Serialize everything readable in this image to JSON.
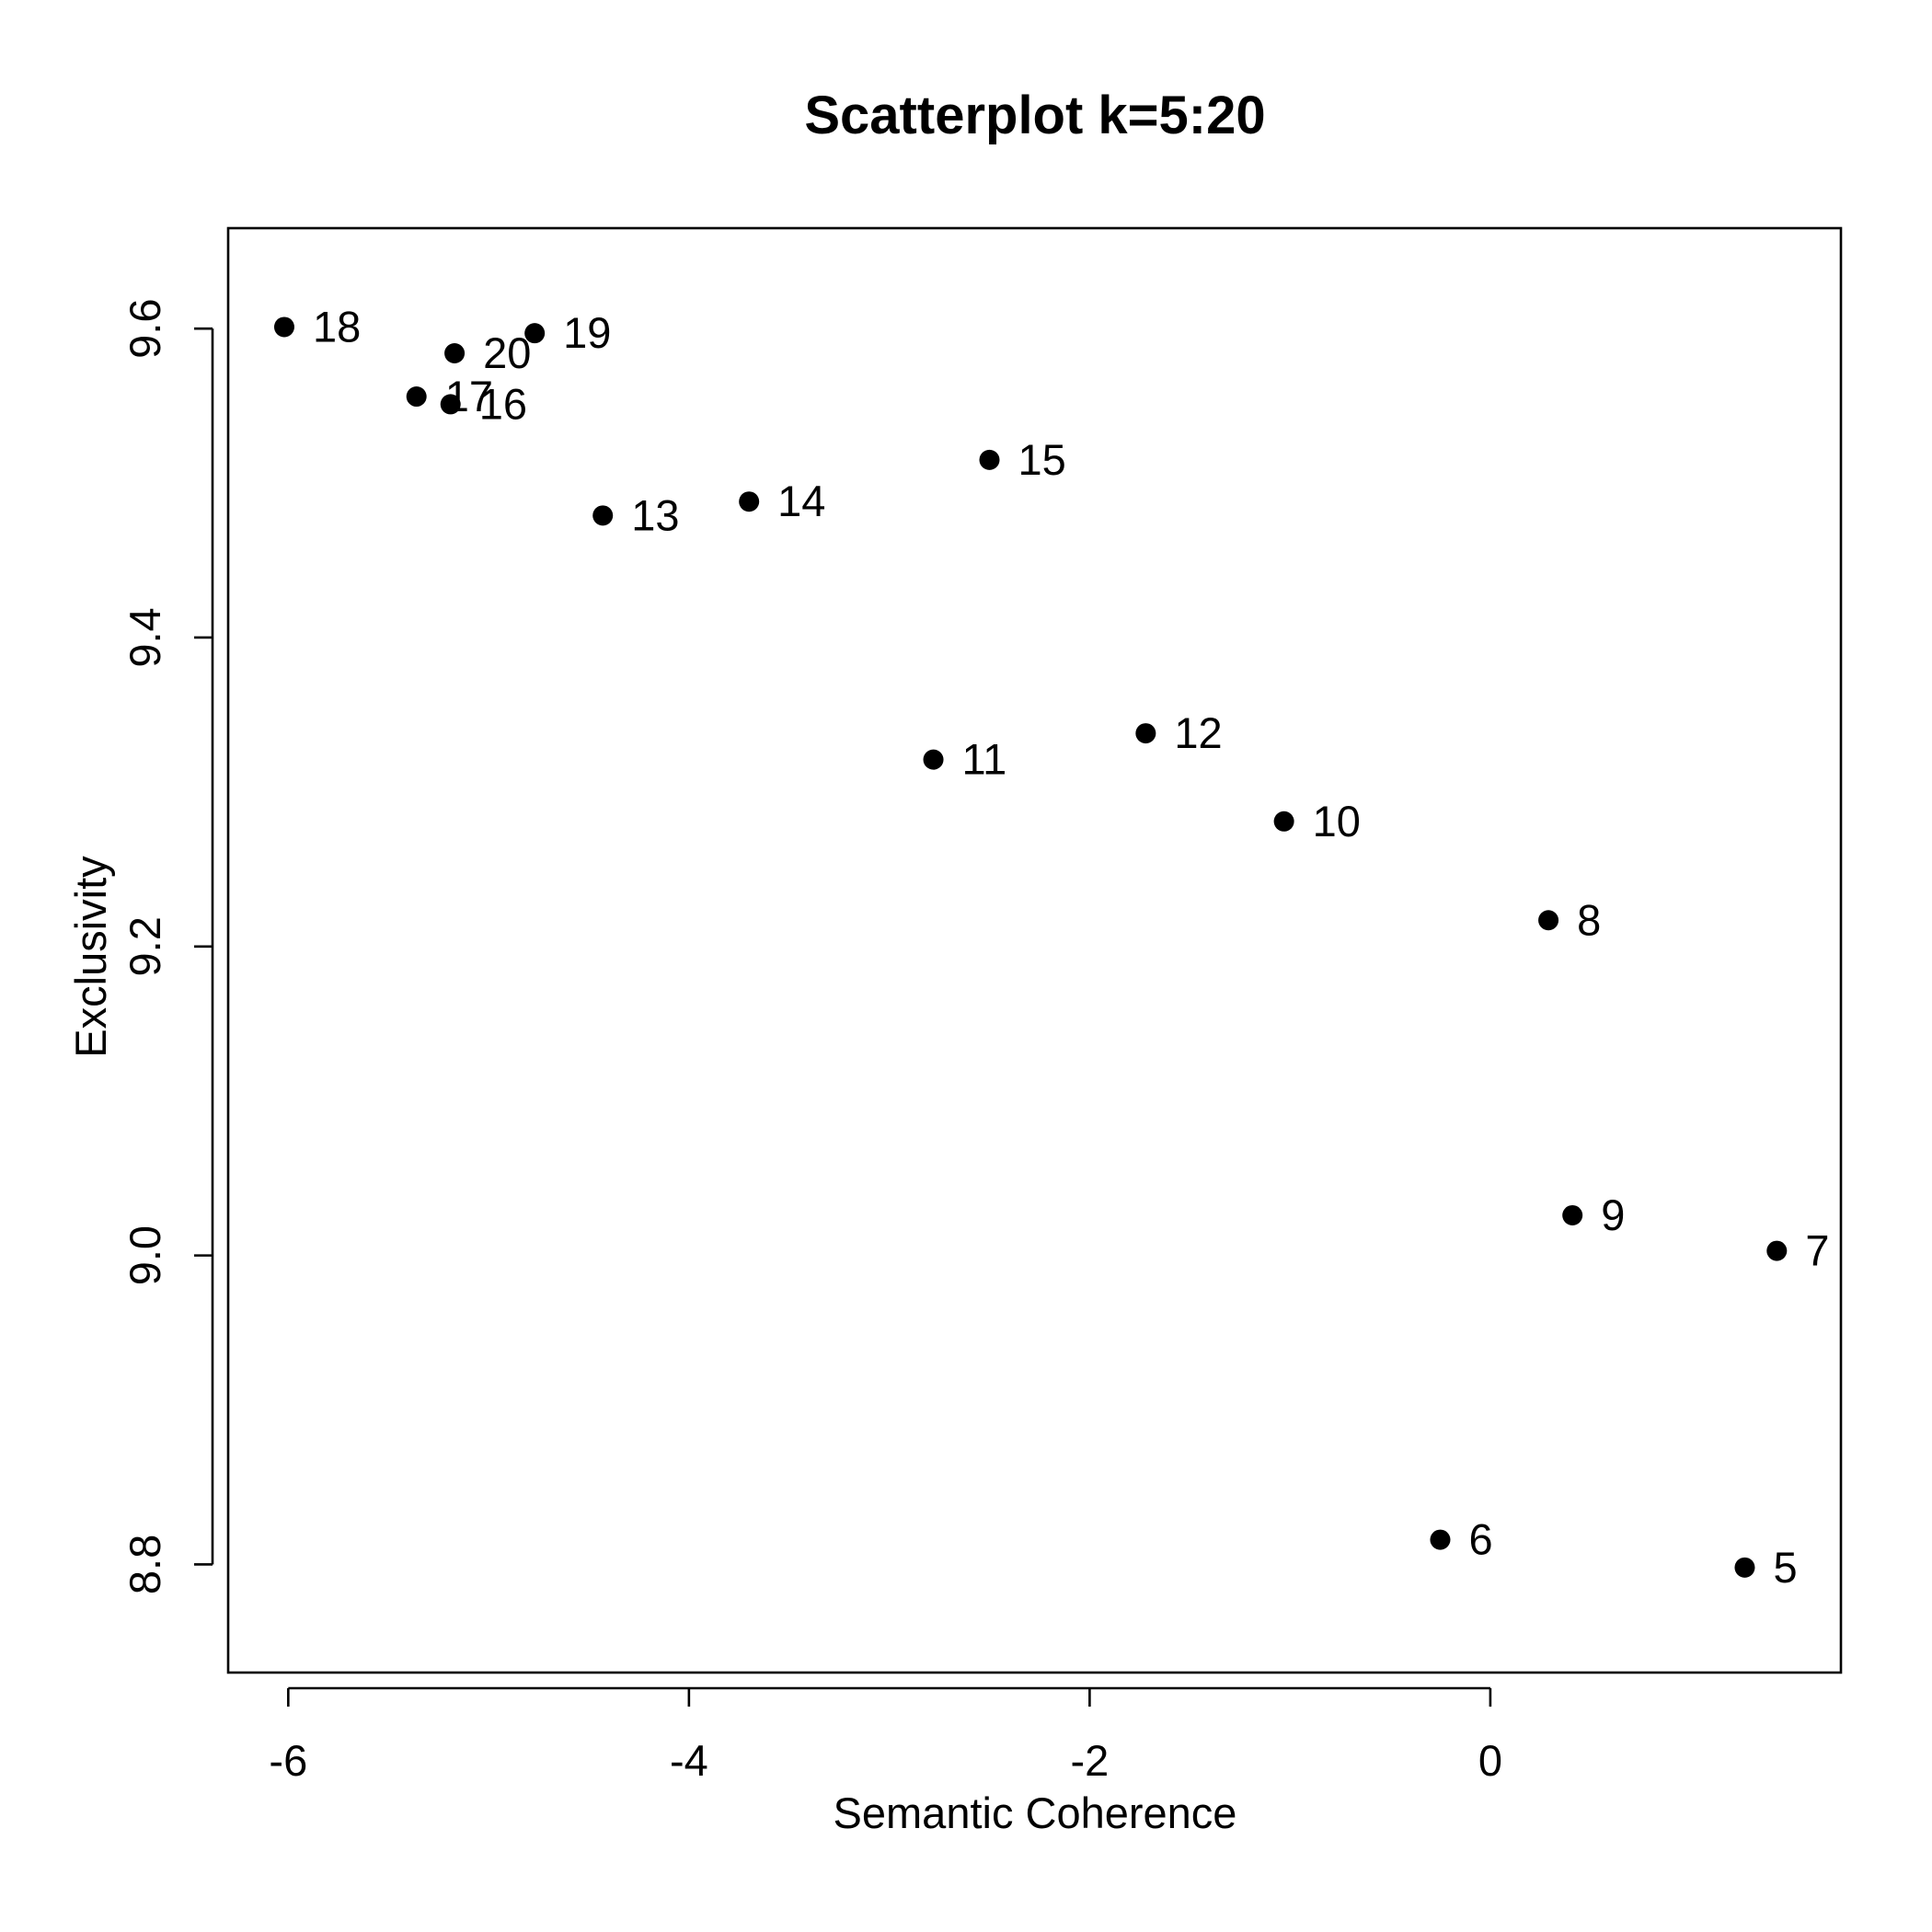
{
  "chart_data": {
    "type": "scatter",
    "title": "Scatterplot k=5:20",
    "xlabel": "Semantic Coherence",
    "ylabel": "Exclusivity",
    "xlim": [
      -6.3,
      1.75
    ],
    "ylim": [
      8.73,
      9.665
    ],
    "xticks": [
      -6,
      -4,
      -2,
      0
    ],
    "xtick_labels": [
      "-6",
      "-4",
      "-2",
      "0"
    ],
    "yticks": [
      8.8,
      9.0,
      9.2,
      9.4,
      9.6
    ],
    "ytick_labels": [
      "8.8",
      "9.0",
      "9.2",
      "9.4",
      "9.6"
    ],
    "grid": false,
    "legend": "none",
    "marker_color": "#000000",
    "points": [
      {
        "label": "5",
        "x": 1.27,
        "y": 8.798
      },
      {
        "label": "6",
        "x": -0.25,
        "y": 8.816
      },
      {
        "label": "7",
        "x": 1.43,
        "y": 9.003
      },
      {
        "label": "8",
        "x": 0.29,
        "y": 9.217
      },
      {
        "label": "9",
        "x": 0.41,
        "y": 9.026
      },
      {
        "label": "10",
        "x": -1.03,
        "y": 9.281
      },
      {
        "label": "11",
        "x": -2.78,
        "y": 9.321
      },
      {
        "label": "12",
        "x": -1.72,
        "y": 9.338
      },
      {
        "label": "13",
        "x": -4.43,
        "y": 9.479
      },
      {
        "label": "14",
        "x": -3.7,
        "y": 9.488
      },
      {
        "label": "15",
        "x": -2.5,
        "y": 9.515
      },
      {
        "label": "16",
        "x": -5.19,
        "y": 9.551
      },
      {
        "label": "17",
        "x": -5.36,
        "y": 9.556
      },
      {
        "label": "18",
        "x": -6.02,
        "y": 9.601
      },
      {
        "label": "19",
        "x": -4.77,
        "y": 9.597
      },
      {
        "label": "20",
        "x": -5.17,
        "y": 9.584
      }
    ]
  }
}
